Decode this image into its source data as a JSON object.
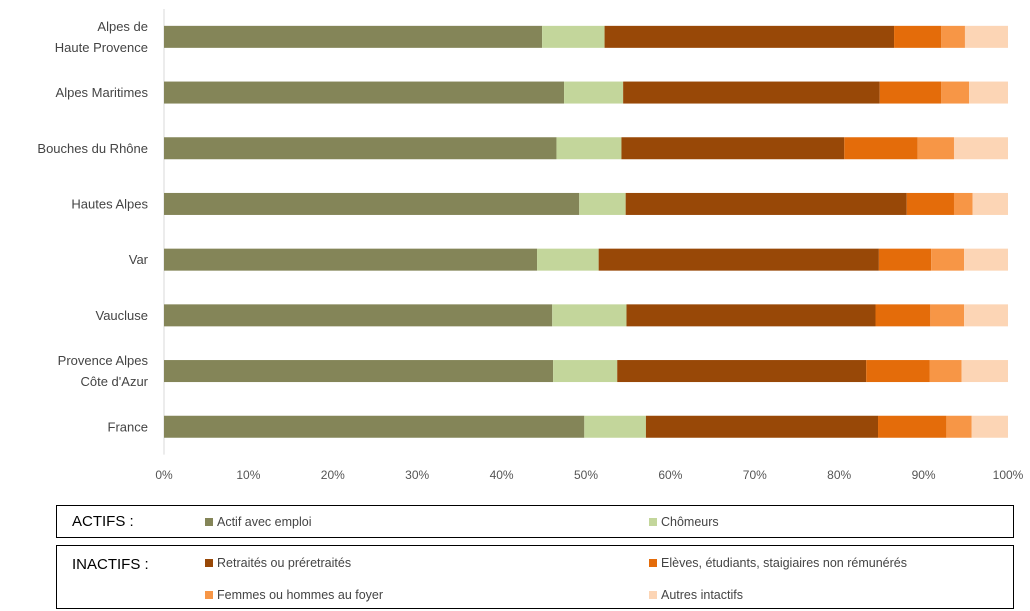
{
  "chart_data": {
    "type": "bar",
    "orientation": "horizontal",
    "stacked": "percent",
    "title": "",
    "xlabel": "",
    "ylabel": "",
    "xlim": [
      0,
      100
    ],
    "x_ticks": [
      "0%",
      "10%",
      "20%",
      "30%",
      "40%",
      "50%",
      "60%",
      "70%",
      "80%",
      "90%",
      "100%"
    ],
    "categories": [
      [
        "Alpes de",
        "Haute Provence"
      ],
      [
        "Alpes Maritimes"
      ],
      [
        "Bouches du Rhône"
      ],
      [
        "Hautes Alpes"
      ],
      [
        "Var"
      ],
      [
        "Vaucluse"
      ],
      [
        "Provence Alpes",
        "Côte d'Azur"
      ],
      [
        "France"
      ]
    ],
    "series": [
      {
        "name": "Actif avec emploi",
        "color": "#848558",
        "values": [
          44.8,
          47.4,
          46.5,
          49.2,
          44.2,
          46.0,
          46.1,
          49.8
        ]
      },
      {
        "name": "Chômeurs",
        "color": "#c3d69b",
        "values": [
          7.4,
          7.0,
          7.7,
          5.5,
          7.3,
          8.8,
          7.6,
          7.3
        ]
      },
      {
        "name": "Retraités ou préretraités",
        "color": "#984807",
        "values": [
          34.3,
          30.4,
          26.4,
          33.3,
          33.2,
          29.5,
          29.5,
          27.5
        ]
      },
      {
        "name": "Elèves, étudiants, staigiaires non rémunérés",
        "color": "#e46c0a",
        "values": [
          5.6,
          7.3,
          8.7,
          5.6,
          6.2,
          6.5,
          7.5,
          8.1
        ]
      },
      {
        "name": "Femmes ou hommes au foyer",
        "color": "#f79646",
        "values": [
          2.8,
          3.3,
          4.3,
          2.2,
          3.9,
          4.0,
          3.8,
          3.0
        ]
      },
      {
        "name": "Autres intactifs",
        "color": "#fcd5b5",
        "values": [
          5.1,
          4.6,
          6.4,
          4.2,
          5.2,
          5.2,
          5.5,
          4.3
        ]
      }
    ]
  },
  "legend": {
    "actifs_title": "ACTIFS :",
    "inactifs_title": "INACTIFS :"
  }
}
